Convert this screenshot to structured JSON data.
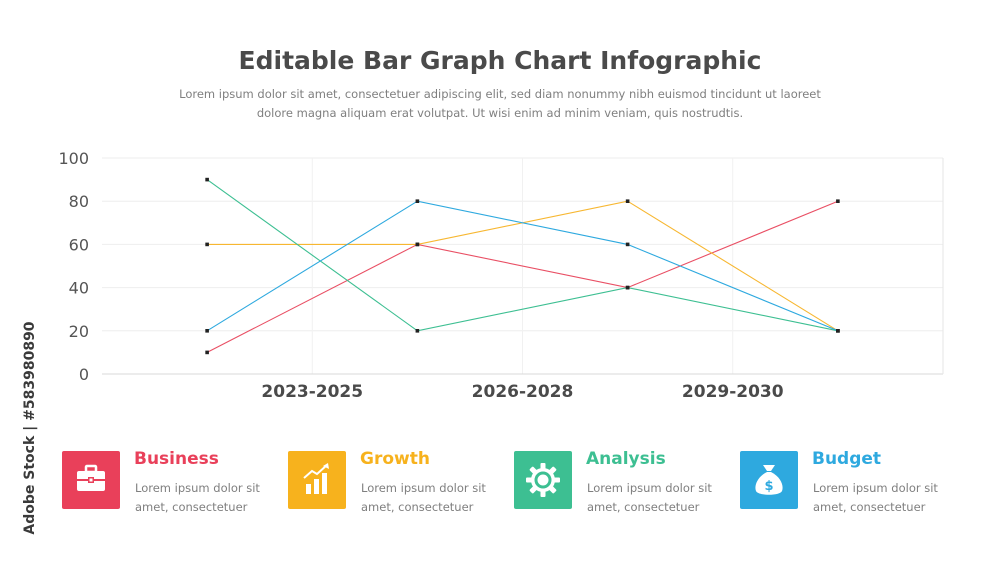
{
  "header": {
    "title": "Editable Bar Graph Chart Infographic",
    "subtitle": "Lorem ipsum dolor sit amet, consectetuer adipiscing elit, sed diam nonummy nibh euismod tincidunt ut laoreet dolore magna aliquam erat volutpat. Ut wisi enim ad minim veniam, quis nostrudtis."
  },
  "chart_data": {
    "type": "line",
    "x": [
      1,
      2,
      3,
      4
    ],
    "xlim": [
      0.5,
      4.5
    ],
    "category_labels": [
      {
        "label": "2023-2025",
        "position": 1.5
      },
      {
        "label": "2026-2028",
        "position": 2.5
      },
      {
        "label": "2029-2030",
        "position": 3.5
      }
    ],
    "ylim": [
      0,
      100
    ],
    "yticks": [
      0,
      20,
      40,
      60,
      80,
      100
    ],
    "grid": true,
    "legend": "none",
    "series": [
      {
        "color": "#e94f64",
        "values": [
          10,
          60,
          40,
          80
        ]
      },
      {
        "color": "#f7b731",
        "values": [
          60,
          60,
          80,
          20
        ]
      },
      {
        "color": "#3dbf92",
        "values": [
          90,
          20,
          40,
          20
        ]
      },
      {
        "color": "#2ea9df",
        "values": [
          20,
          80,
          60,
          20
        ]
      }
    ]
  },
  "cards": [
    {
      "title": "Business",
      "text": "Lorem ipsum dolor sit amet, consectetuer",
      "color": "#e9405a",
      "icon": "briefcase-icon"
    },
    {
      "title": "Growth",
      "text": "Lorem ipsum dolor sit amet, consectetuer",
      "color": "#f7b21d",
      "icon": "growth-chart-icon"
    },
    {
      "title": "Analysis",
      "text": "Lorem ipsum dolor sit amet, consectetuer",
      "color": "#3dbf92",
      "icon": "gear-icon"
    },
    {
      "title": "Budget",
      "text": "Lorem ipsum dolor sit amet, consectetuer",
      "color": "#2ea9df",
      "icon": "money-bag-icon"
    }
  ],
  "watermark": "Adobe Stock | #583980890"
}
